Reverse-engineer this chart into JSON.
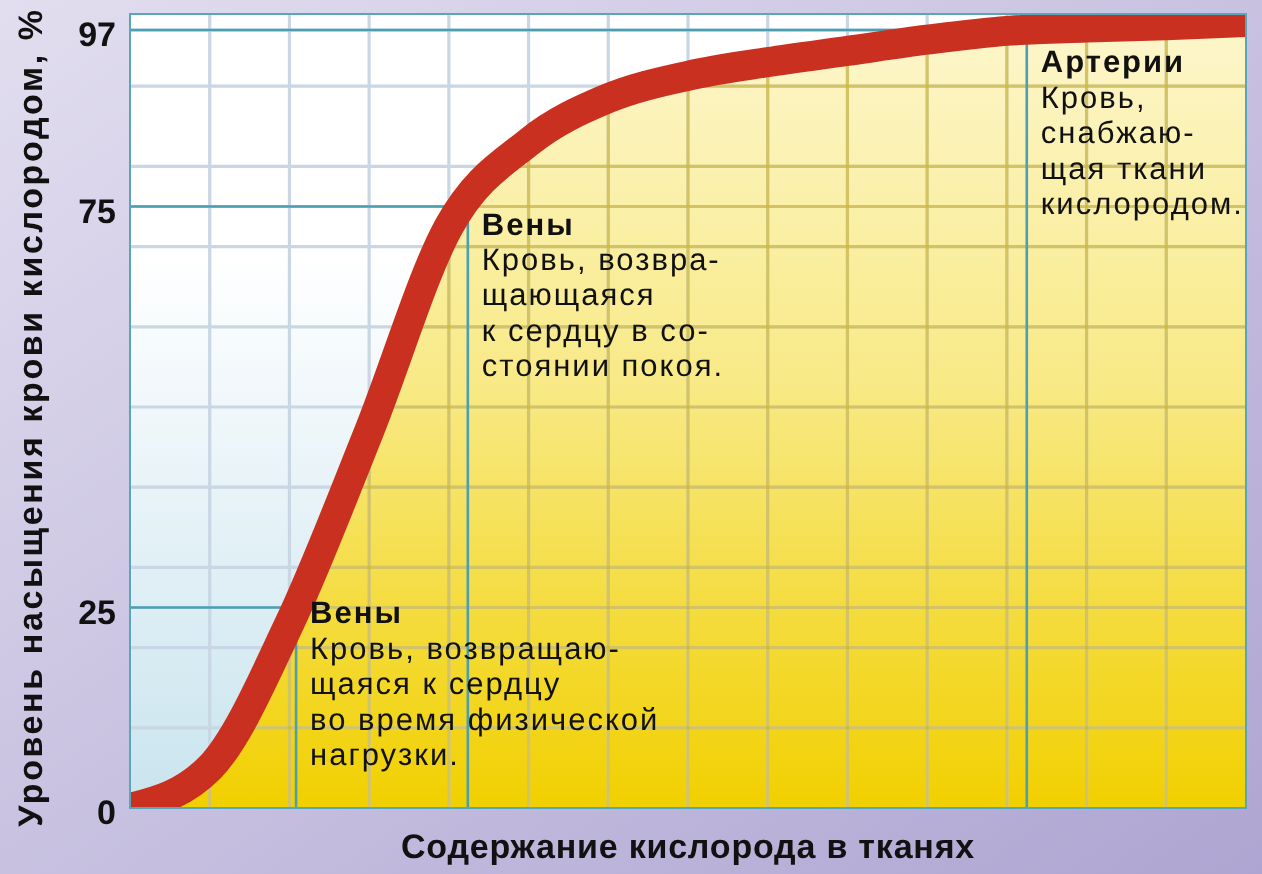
{
  "chart_data": {
    "type": "area",
    "xlabel": "Содержание кислорода в тканях",
    "ylabel": "Уровень насыщения крови кислородом, %",
    "categories": [
      null,
      null,
      null,
      null,
      null,
      null,
      null,
      null,
      null,
      null,
      null,
      null,
      null,
      null,
      null
    ],
    "series": [
      {
        "color": "#c9301f",
        "values": [
          0,
          5,
          23,
          47,
          72.5,
          83,
          88.5,
          91.3,
          93,
          94.4,
          95.8,
          96.9,
          97.3,
          97.6,
          98
        ]
      }
    ],
    "ylim": [
      0,
      99
    ],
    "yticks": [
      0,
      {
        "value": 10,
        "label": null
      },
      {
        "value": 20,
        "label": null
      },
      25,
      {
        "value": 30,
        "label": null
      },
      {
        "value": 40,
        "label": null
      },
      {
        "value": 50,
        "label": null
      },
      {
        "value": 60,
        "label": null
      },
      {
        "value": 70,
        "label": null
      },
      75,
      {
        "value": 80,
        "label": null
      },
      {
        "value": 90,
        "label": null
      },
      97
    ],
    "grid": true,
    "ref_lines": [
      {
        "axis": "y",
        "value": 25,
        "color": "#4a9fb2",
        "label": "Вены\nКровь, возвращаю-\nщаяся к сердцу\nво время физической\nнагрузки."
      },
      {
        "axis": "y",
        "value": 75,
        "color": "#4a9fb2",
        "label": "Вены\nКровь, возвра-\nщающаяся\nк сердцу в со-\nстоянии покоя."
      },
      {
        "axis": "y",
        "value": 97,
        "color": "#4a9fb2",
        "label": "Артерии\nКровь,\nснабжаю-\nщая ткани\nкислородом."
      }
    ]
  }
}
